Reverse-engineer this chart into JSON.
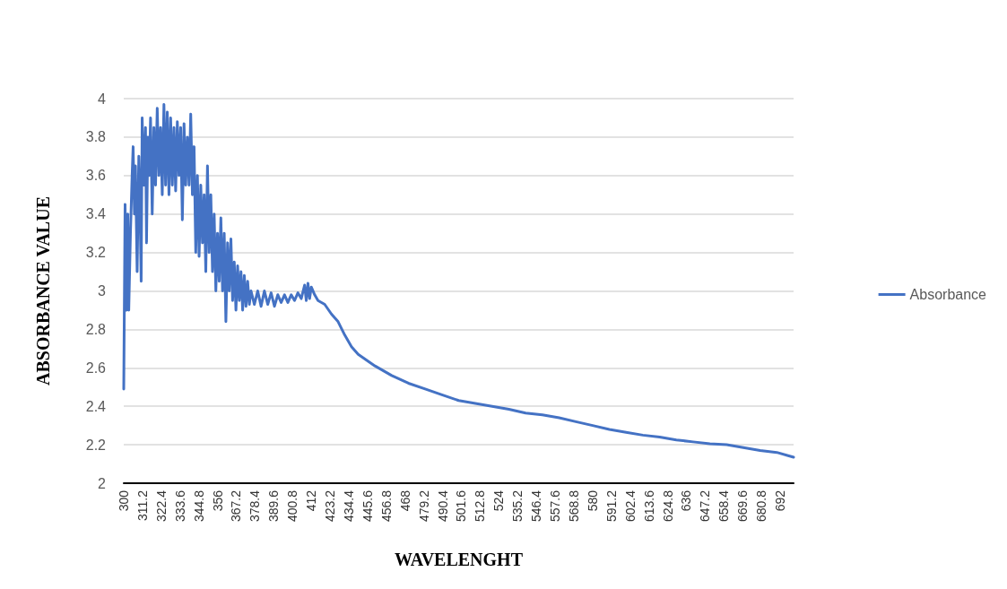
{
  "chart_data": {
    "type": "line",
    "xlabel": "WAVELENGHT",
    "ylabel": "ABSORBANCE VALUE",
    "xlim": [
      300,
      700
    ],
    "xticks": [
      300,
      311.2,
      322.4,
      333.6,
      344.8,
      356,
      367.2,
      378.4,
      389.6,
      400.8,
      412,
      423.2,
      434.4,
      445.6,
      456.8,
      468,
      479.2,
      490.4,
      501.6,
      512.8,
      524,
      535.2,
      546.4,
      557.6,
      568.8,
      580,
      591.2,
      602.4,
      613.6,
      624.8,
      636,
      647.2,
      658.4,
      669.6,
      680.8,
      692
    ],
    "ylim": [
      2,
      4
    ],
    "yticks": [
      2,
      2.2,
      2.4,
      2.6,
      2.8,
      3,
      3.2,
      3.4,
      3.6,
      3.8,
      4
    ],
    "grid": "y",
    "legend": "right",
    "marker": "none",
    "line_style": "solid",
    "series": [
      {
        "name": "Absorbance",
        "color": "#4472c4",
        "x": [
          300,
          300.8,
          301.6,
          302.4,
          303,
          304,
          305,
          305.6,
          306.4,
          307,
          308,
          309,
          309.6,
          310.4,
          311,
          312,
          313,
          313.6,
          314.4,
          315.2,
          316,
          317,
          318,
          319,
          320,
          321,
          322,
          323,
          324,
          325,
          326,
          327,
          328,
          329,
          330,
          331,
          332,
          333,
          334,
          335,
          336,
          337,
          338,
          339,
          340,
          341,
          342,
          343,
          344,
          345,
          346,
          347,
          348,
          349,
          350,
          351,
          352,
          353,
          354,
          355,
          356,
          357,
          358,
          359,
          360,
          361,
          362,
          363,
          364,
          365,
          366,
          367,
          368,
          369,
          370,
          371,
          372,
          373,
          374,
          375,
          376,
          378,
          380,
          382,
          384,
          386,
          388,
          390,
          392,
          394,
          396,
          398,
          400,
          402,
          404,
          406,
          408,
          409,
          410,
          411,
          412,
          414,
          416,
          420,
          424,
          428,
          432,
          436,
          440,
          450,
          460,
          470,
          480,
          490,
          500,
          510,
          520,
          530,
          540,
          550,
          560,
          570,
          580,
          590,
          600,
          610,
          620,
          630,
          640,
          650,
          660,
          670,
          680,
          690,
          700
        ],
        "values": [
          2.49,
          3.45,
          2.9,
          3.4,
          2.9,
          3.3,
          3.6,
          3.75,
          3.4,
          3.65,
          3.1,
          3.7,
          3.5,
          3.05,
          3.9,
          3.55,
          3.85,
          3.25,
          3.8,
          3.6,
          3.9,
          3.4,
          3.85,
          3.55,
          3.95,
          3.6,
          3.85,
          3.5,
          3.97,
          3.55,
          3.93,
          3.5,
          3.9,
          3.55,
          3.85,
          3.52,
          3.88,
          3.6,
          3.85,
          3.37,
          3.87,
          3.55,
          3.8,
          3.55,
          3.92,
          3.5,
          3.75,
          3.2,
          3.6,
          3.18,
          3.55,
          3.25,
          3.5,
          3.1,
          3.65,
          3.2,
          3.5,
          3.1,
          3.4,
          3.0,
          3.3,
          3.05,
          3.38,
          3.0,
          3.3,
          2.84,
          3.25,
          3.0,
          3.27,
          2.95,
          3.15,
          2.9,
          3.13,
          2.95,
          3.1,
          2.9,
          3.08,
          2.92,
          3.05,
          2.93,
          3.0,
          2.93,
          3.0,
          2.92,
          3.0,
          2.93,
          2.99,
          2.92,
          2.98,
          2.94,
          2.98,
          2.94,
          2.98,
          2.95,
          2.99,
          2.96,
          3.03,
          2.95,
          3.04,
          2.96,
          3.02,
          2.98,
          2.95,
          2.93,
          2.88,
          2.84,
          2.77,
          2.71,
          2.67,
          2.61,
          2.56,
          2.52,
          2.49,
          2.46,
          2.43,
          2.415,
          2.4,
          2.385,
          2.365,
          2.355,
          2.34,
          2.32,
          2.3,
          2.28,
          2.265,
          2.25,
          2.24,
          2.225,
          2.215,
          2.205,
          2.2,
          2.185,
          2.17,
          2.16,
          2.135
        ]
      }
    ]
  }
}
